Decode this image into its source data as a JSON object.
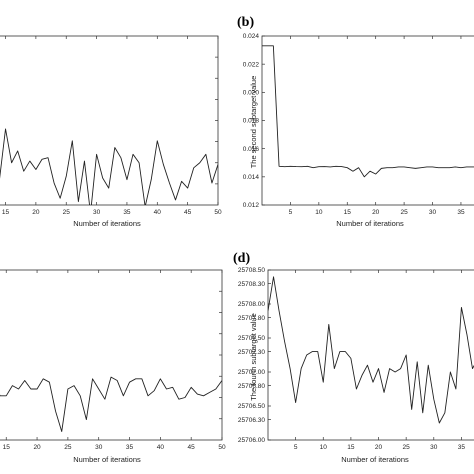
{
  "figure": {
    "panel_b_label": "(b)",
    "panel_d_label": "(d)"
  },
  "chart_data": [
    {
      "id": "a",
      "type": "line",
      "title": "",
      "xlabel": "Number of iterations",
      "ylabel": "",
      "x_ticks": [
        "10",
        "15",
        "20",
        "25",
        "30",
        "35",
        "40",
        "45",
        "50"
      ],
      "y_ticks": [],
      "xlim": [
        7.5,
        50
      ],
      "ylim": [
        0,
        1
      ],
      "grid": false,
      "series": [
        {
          "x": [
            7,
            8,
            9,
            10,
            11,
            12,
            13,
            14,
            15,
            16,
            17,
            18,
            19,
            20,
            21,
            22,
            23,
            24,
            25,
            26,
            27,
            28,
            29,
            30,
            31,
            32,
            33,
            34,
            35,
            36,
            37,
            38,
            39,
            40,
            41,
            42,
            43,
            44,
            45,
            46,
            47,
            48,
            49,
            50
          ],
          "values": [
            0.13,
            0.06,
            0.12,
            0.3,
            0.07,
            0.09,
            0.14,
            0.15,
            0.45,
            0.25,
            0.32,
            0.2,
            0.26,
            0.21,
            0.27,
            0.28,
            0.13,
            0.04,
            0.17,
            0.38,
            0.02,
            0.26,
            -0.05,
            0.3,
            0.16,
            0.1,
            0.34,
            0.28,
            0.15,
            0.3,
            0.25,
            -0.01,
            0.15,
            0.38,
            0.24,
            0.13,
            0.03,
            0.14,
            0.1,
            0.22,
            0.25,
            0.3,
            0.13,
            0.24
          ]
        }
      ]
    },
    {
      "id": "b",
      "type": "line",
      "title": "",
      "xlabel": "Number of iterations",
      "ylabel": "The second subtarget value",
      "x_ticks": [
        "5",
        "10",
        "15",
        "20",
        "25",
        "30",
        "35"
      ],
      "y_ticks": [
        "0.024",
        "0.022",
        "0.020",
        "0.018",
        "0.016",
        "0.014",
        "0.012"
      ],
      "xlim": [
        0,
        38
      ],
      "ylim": [
        0.012,
        0.024
      ],
      "grid": false,
      "series": [
        {
          "x": [
            0,
            1,
            2,
            3,
            4,
            5,
            6,
            7,
            8,
            9,
            10,
            11,
            12,
            13,
            14,
            15,
            16,
            17,
            18,
            19,
            20,
            21,
            22,
            23,
            24,
            25,
            26,
            27,
            28,
            29,
            30,
            31,
            32,
            33,
            34,
            35,
            36,
            37,
            38
          ],
          "values": [
            0.0233,
            0.0233,
            0.0233,
            0.01475,
            0.01472,
            0.01475,
            0.01473,
            0.01472,
            0.01475,
            0.01465,
            0.01472,
            0.01473,
            0.0147,
            0.01475,
            0.01473,
            0.01465,
            0.0144,
            0.01465,
            0.014,
            0.0144,
            0.0142,
            0.0146,
            0.01465,
            0.01465,
            0.0147,
            0.0147,
            0.01465,
            0.0146,
            0.01465,
            0.0147,
            0.0147,
            0.01465,
            0.01465,
            0.01465,
            0.0147,
            0.01465,
            0.0147,
            0.0147,
            0.0147
          ]
        }
      ]
    },
    {
      "id": "c",
      "type": "line",
      "title": "",
      "xlabel": "Number of iterations",
      "ylabel": "",
      "x_ticks": [
        "10",
        "15",
        "20",
        "25",
        "30",
        "35",
        "40",
        "45",
        "50"
      ],
      "y_ticks": [],
      "xlim": [
        7.5,
        50
      ],
      "ylim": [
        0,
        1
      ],
      "grid": false,
      "series": [
        {
          "x": [
            7,
            8,
            9,
            10,
            11,
            12,
            13,
            14,
            15,
            16,
            17,
            18,
            19,
            20,
            21,
            22,
            23,
            24,
            25,
            26,
            27,
            28,
            29,
            30,
            31,
            32,
            33,
            34,
            35,
            36,
            37,
            38,
            39,
            40,
            41,
            42,
            43,
            44,
            45,
            46,
            47,
            48,
            49,
            50
          ],
          "values": [
            0.3,
            0.2,
            0.32,
            0.36,
            0.3,
            0.26,
            0.34,
            0.26,
            0.26,
            0.32,
            0.3,
            0.35,
            0.3,
            0.3,
            0.36,
            0.34,
            0.17,
            0.05,
            0.3,
            0.32,
            0.26,
            0.12,
            0.36,
            0.3,
            0.24,
            0.37,
            0.35,
            0.26,
            0.34,
            0.36,
            0.36,
            0.26,
            0.29,
            0.36,
            0.3,
            0.31,
            0.24,
            0.25,
            0.31,
            0.27,
            0.26,
            0.28,
            0.3,
            0.35
          ]
        }
      ]
    },
    {
      "id": "d",
      "type": "line",
      "title": "",
      "xlabel": "Number of iterations",
      "ylabel": "The fourth subtarget value",
      "x_ticks": [
        "5",
        "10",
        "15",
        "20",
        "25",
        "30",
        "35"
      ],
      "y_ticks": [
        "25708.50",
        "25708.30",
        "25708.00",
        "25707.80",
        "25707.50",
        "25707.30",
        "25707.00",
        "25706.80",
        "25706.50",
        "25706.30",
        "25706.00"
      ],
      "xlim": [
        0,
        38
      ],
      "ylim": [
        25706.0,
        25708.5
      ],
      "grid": false,
      "series": [
        {
          "x": [
            0,
            1,
            2,
            3,
            4,
            5,
            6,
            7,
            8,
            9,
            10,
            11,
            12,
            13,
            14,
            15,
            16,
            17,
            18,
            19,
            20,
            21,
            22,
            23,
            24,
            25,
            26,
            27,
            28,
            29,
            30,
            31,
            32,
            33,
            34,
            35,
            36,
            37,
            38
          ],
          "values": [
            25707.9,
            25708.4,
            25707.9,
            25707.45,
            25707.05,
            25706.55,
            25707.05,
            25707.25,
            25707.3,
            25707.3,
            25706.85,
            25707.7,
            25707.05,
            25707.3,
            25707.3,
            25707.2,
            25706.75,
            25706.95,
            25707.1,
            25706.85,
            25707.05,
            25706.7,
            25707.05,
            25707.0,
            25707.05,
            25707.25,
            25706.45,
            25707.15,
            25706.4,
            25707.1,
            25706.6,
            25706.25,
            25706.4,
            25707.0,
            25706.75,
            25707.95,
            25707.55,
            25707.05,
            25707.2
          ]
        }
      ]
    }
  ]
}
